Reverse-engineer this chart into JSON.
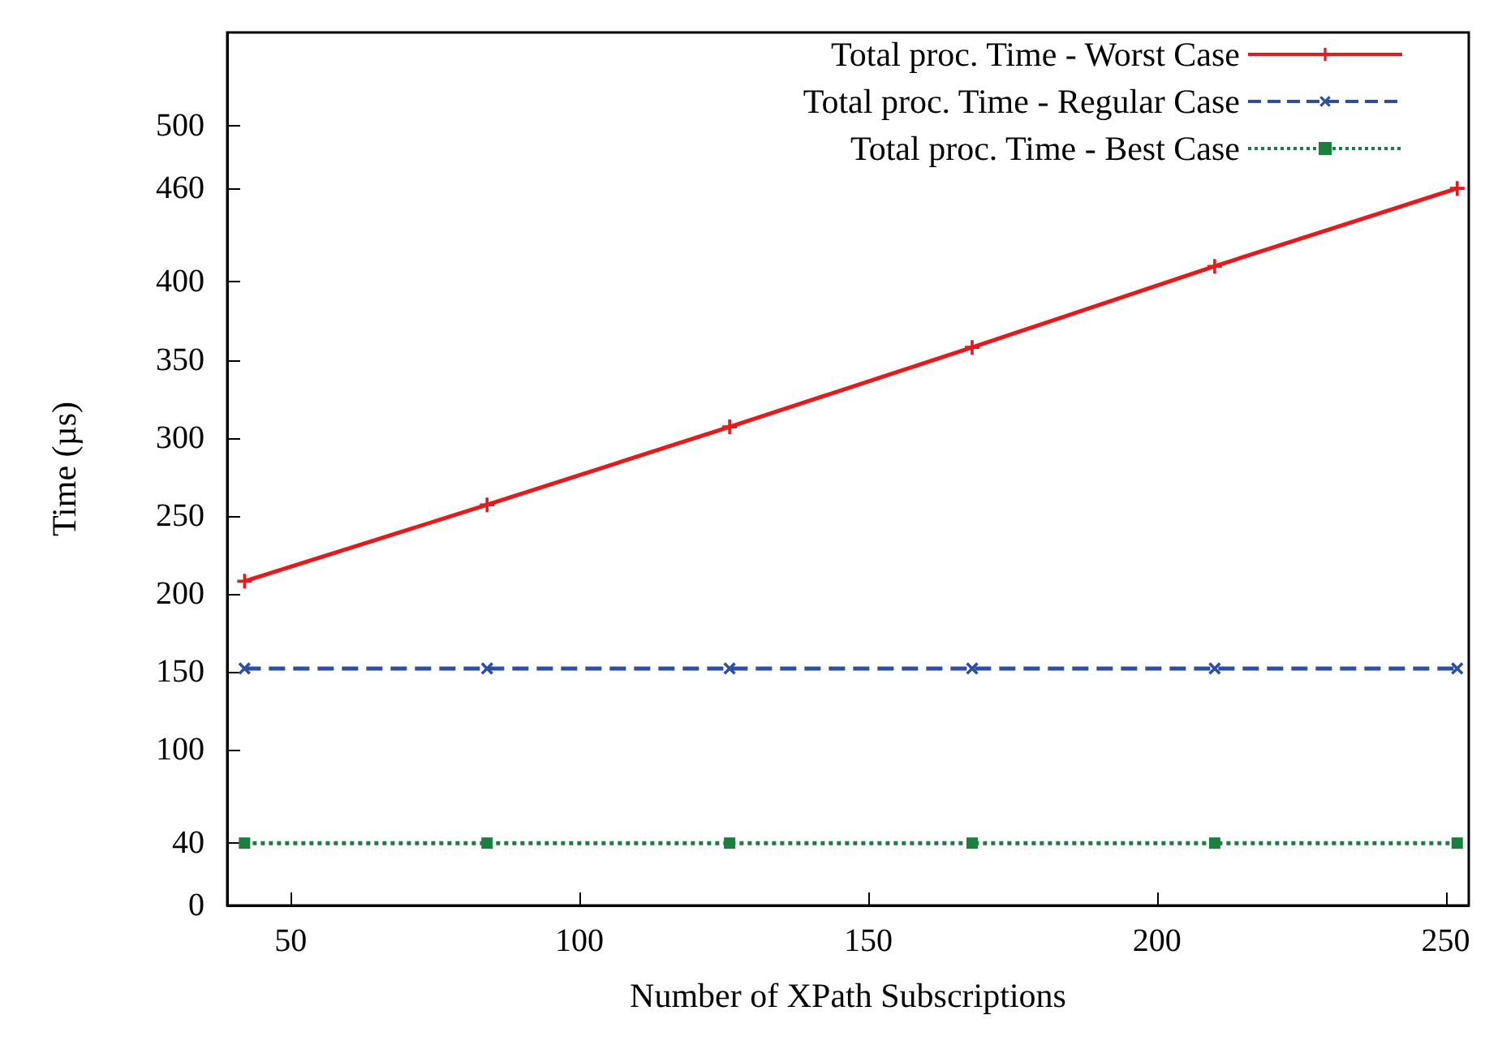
{
  "chart_data": {
    "type": "line",
    "xlabel": "Number of XPath Subscriptions",
    "ylabel": "Time (µs)",
    "x": [
      42,
      84,
      126,
      168,
      210,
      252
    ],
    "series": [
      {
        "name": "Total proc. Time - Worst Case",
        "color": "#e41a1c",
        "values": [
          208,
          257,
          307,
          358,
          410,
          460
        ],
        "marker": "cross",
        "line_style": "solid"
      },
      {
        "name": "Total proc. Time - Regular Case",
        "color": "#2c4fa3",
        "values": [
          152,
          152,
          152,
          152,
          152,
          152
        ],
        "marker": "cross",
        "line_style": "dashed"
      },
      {
        "name": "Total proc. Time - Best Case",
        "color": "#1a8040",
        "values": [
          40,
          40,
          40,
          40,
          40,
          40
        ],
        "marker": "square",
        "line_style": "dotted"
      }
    ],
    "xlim": [
      39,
      254
    ],
    "xticks": [
      50,
      100,
      150,
      200,
      250
    ],
    "ylim": [
      0,
      560
    ],
    "yticks": [
      0,
      40,
      100,
      150,
      200,
      250,
      300,
      350,
      400,
      460,
      500
    ],
    "grid": false,
    "legend": "top right"
  }
}
